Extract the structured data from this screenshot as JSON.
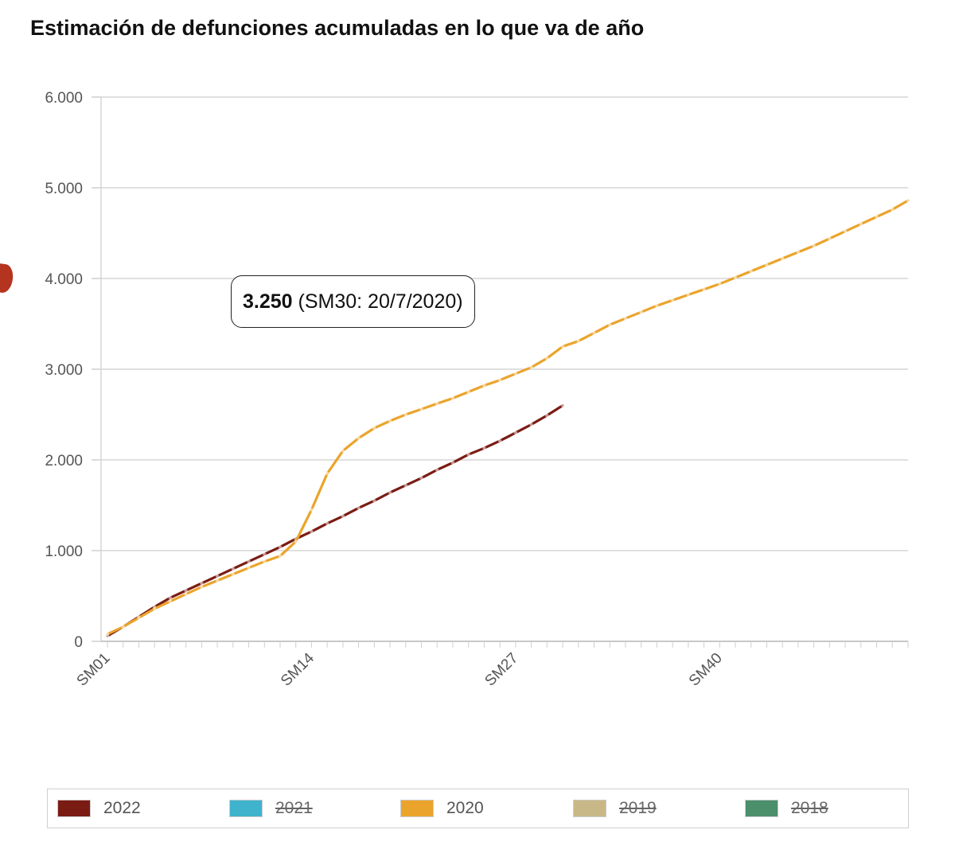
{
  "chart_data": {
    "type": "line",
    "title": "Estimación de defunciones acumuladas en lo que va de año",
    "x_count": 52,
    "x_tick_labels": [
      {
        "index": 1,
        "label": "SM01"
      },
      {
        "index": 14,
        "label": "SM14"
      },
      {
        "index": 27,
        "label": "SM27"
      },
      {
        "index": 40,
        "label": "SM40"
      }
    ],
    "ylim": [
      0,
      6000
    ],
    "y_ticks": [
      {
        "value": 0,
        "label": "0"
      },
      {
        "value": 1000,
        "label": "1.000"
      },
      {
        "value": 2000,
        "label": "2.000"
      },
      {
        "value": 3000,
        "label": "3.000"
      },
      {
        "value": 4000,
        "label": "4.000"
      },
      {
        "value": 5000,
        "label": "5.000"
      },
      {
        "value": 6000,
        "label": "6.000"
      }
    ],
    "grid": true,
    "legend_position": "bottom",
    "series": [
      {
        "name": "2022",
        "color": "#7b1c14",
        "visible": true,
        "values": [
          60,
          160,
          270,
          380,
          480,
          560,
          640,
          720,
          800,
          880,
          960,
          1040,
          1130,
          1210,
          1300,
          1380,
          1470,
          1550,
          1640,
          1720,
          1800,
          1890,
          1970,
          2060,
          2130,
          2210,
          2300,
          2390,
          2490,
          2600
        ]
      },
      {
        "name": "2021",
        "color": "#3fb3cc",
        "visible": false,
        "values": []
      },
      {
        "name": "2020",
        "color": "#eba42b",
        "visible": true,
        "values": [
          80,
          160,
          260,
          360,
          440,
          520,
          600,
          670,
          740,
          810,
          880,
          940,
          1100,
          1450,
          1850,
          2100,
          2240,
          2350,
          2430,
          2500,
          2560,
          2620,
          2680,
          2750,
          2820,
          2880,
          2950,
          3020,
          3120,
          3250,
          3310,
          3400,
          3490,
          3560,
          3630,
          3700,
          3760,
          3820,
          3880,
          3940,
          4010,
          4080,
          4150,
          4220,
          4290,
          4360,
          4440,
          4520,
          4600,
          4680,
          4760,
          4860
        ]
      },
      {
        "name": "2019",
        "color": "#c9b887",
        "visible": false,
        "values": []
      },
      {
        "name": "2018",
        "color": "#4b8f6b",
        "visible": false,
        "values": []
      }
    ],
    "tooltip": {
      "value": "3.250",
      "detail": "(SM30: 20/7/2020)"
    }
  }
}
